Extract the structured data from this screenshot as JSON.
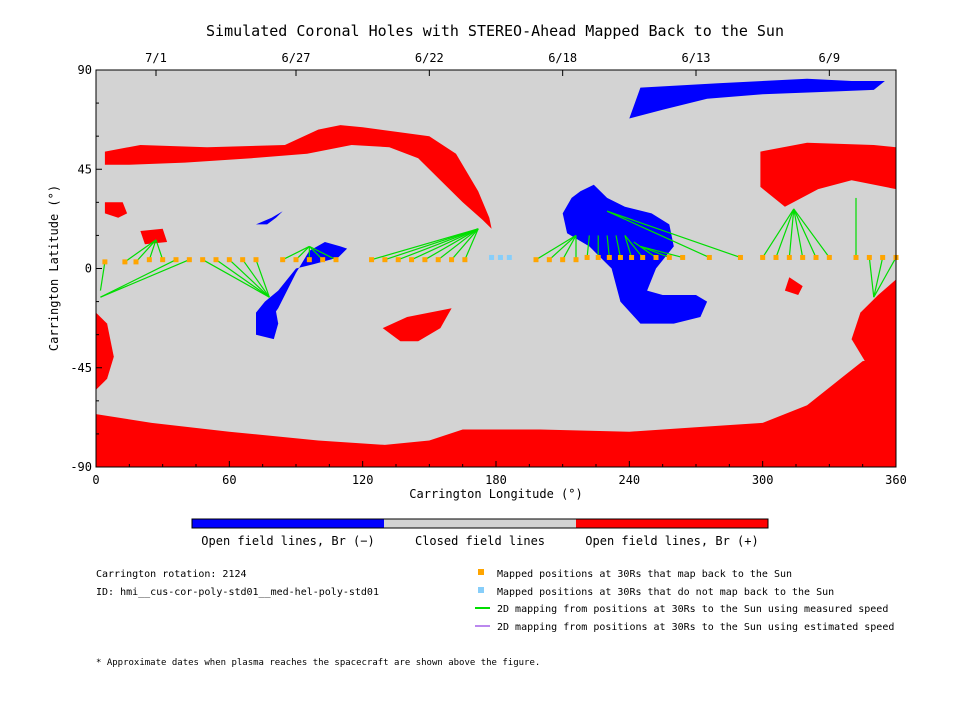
{
  "chart_data": {
    "type": "map",
    "title": "Simulated Coronal Holes with STEREO-Ahead Mapped Back to the Sun",
    "xlabel": "Carrington Longitude (°)",
    "ylabel": "Carrington Latitude (°)",
    "xlim": [
      0,
      360
    ],
    "ylim": [
      -90,
      90
    ],
    "x_ticks": [
      "0",
      "60",
      "120",
      "180",
      "240",
      "300",
      "360"
    ],
    "y_ticks": [
      "90",
      "45",
      "0",
      "-45",
      "-90"
    ],
    "top_dates": [
      {
        "label": "7/1",
        "lon": 27
      },
      {
        "label": "6/27",
        "lon": 90
      },
      {
        "label": "6/22",
        "lon": 150
      },
      {
        "label": "6/18",
        "lon": 210
      },
      {
        "label": "6/13",
        "lon": 270
      },
      {
        "label": "6/9",
        "lon": 330
      }
    ],
    "colorbar": [
      {
        "label": "Open field lines, Br (−)",
        "color": "#0000ff"
      },
      {
        "label": "Closed field lines",
        "color": "#d3d3d3"
      },
      {
        "label": "Open field lines, Br (+)",
        "color": "#ff0000"
      }
    ],
    "colors": {
      "closed": "#d3d3d3",
      "negative": "#0000ff",
      "positive": "#ff0000",
      "mapped": "#ffa500",
      "unmapped": "#87cefa",
      "measured": "#00dd00",
      "estimated": "#bb88ee"
    },
    "regions": [
      {
        "polarity": "positive",
        "points": [
          [
            0,
            -66
          ],
          [
            25,
            -70
          ],
          [
            60,
            -74
          ],
          [
            100,
            -78
          ],
          [
            130,
            -80
          ],
          [
            150,
            -78
          ],
          [
            165,
            -73
          ],
          [
            200,
            -73
          ],
          [
            240,
            -74
          ],
          [
            270,
            -72
          ],
          [
            300,
            -70
          ],
          [
            320,
            -62
          ],
          [
            335,
            -50
          ],
          [
            345,
            -42
          ],
          [
            360,
            -40
          ],
          [
            360,
            -90
          ],
          [
            0,
            -90
          ]
        ]
      },
      {
        "polarity": "positive",
        "points": [
          [
            0,
            -20
          ],
          [
            5,
            -25
          ],
          [
            8,
            -40
          ],
          [
            5,
            -50
          ],
          [
            0,
            -55
          ]
        ]
      },
      {
        "polarity": "positive",
        "points": [
          [
            360,
            -5
          ],
          [
            352,
            -12
          ],
          [
            344,
            -20
          ],
          [
            340,
            -32
          ],
          [
            346,
            -42
          ],
          [
            352,
            -48
          ],
          [
            360,
            -45
          ]
        ]
      },
      {
        "polarity": "positive",
        "points": [
          [
            4,
            53
          ],
          [
            20,
            56
          ],
          [
            50,
            55
          ],
          [
            85,
            56
          ],
          [
            100,
            63
          ],
          [
            110,
            65
          ],
          [
            120,
            64
          ],
          [
            135,
            62
          ],
          [
            150,
            60
          ],
          [
            162,
            52
          ],
          [
            172,
            35
          ],
          [
            177,
            23
          ],
          [
            178,
            18
          ],
          [
            174,
            22
          ],
          [
            165,
            30
          ],
          [
            155,
            40
          ],
          [
            145,
            50
          ],
          [
            132,
            55
          ],
          [
            115,
            56
          ],
          [
            95,
            52
          ],
          [
            70,
            50
          ],
          [
            40,
            48
          ],
          [
            15,
            47
          ],
          [
            4,
            47
          ]
        ]
      },
      {
        "polarity": "positive",
        "points": [
          [
            4,
            30
          ],
          [
            12,
            30
          ],
          [
            14,
            25
          ],
          [
            10,
            23
          ],
          [
            4,
            25
          ]
        ]
      },
      {
        "polarity": "positive",
        "points": [
          [
            20,
            17
          ],
          [
            30,
            18
          ],
          [
            32,
            12
          ],
          [
            22,
            11
          ]
        ]
      },
      {
        "polarity": "positive",
        "points": [
          [
            129,
            -27
          ],
          [
            140,
            -22
          ],
          [
            150,
            -20
          ],
          [
            160,
            -18
          ],
          [
            155,
            -27
          ],
          [
            145,
            -33
          ],
          [
            137,
            -33
          ]
        ]
      },
      {
        "polarity": "positive",
        "points": [
          [
            299,
            53
          ],
          [
            320,
            57
          ],
          [
            350,
            56
          ],
          [
            360,
            55
          ],
          [
            360,
            36
          ],
          [
            340,
            40
          ],
          [
            325,
            36
          ],
          [
            310,
            28
          ],
          [
            299,
            37
          ]
        ]
      },
      {
        "polarity": "positive",
        "points": [
          [
            312,
            -4
          ],
          [
            318,
            -8
          ],
          [
            316,
            -12
          ],
          [
            310,
            -10
          ]
        ]
      },
      {
        "polarity": "negative",
        "points": [
          [
            245,
            82
          ],
          [
            280,
            84
          ],
          [
            320,
            86
          ],
          [
            340,
            85
          ],
          [
            355,
            85
          ],
          [
            350,
            81
          ],
          [
            325,
            80
          ],
          [
            300,
            79
          ],
          [
            275,
            77
          ],
          [
            255,
            72
          ],
          [
            240,
            68
          ]
        ]
      },
      {
        "polarity": "negative",
        "points": [
          [
            214,
            32
          ],
          [
            218,
            35
          ],
          [
            224,
            38
          ],
          [
            230,
            32
          ],
          [
            238,
            28
          ],
          [
            250,
            25
          ],
          [
            258,
            20
          ],
          [
            260,
            10
          ],
          [
            252,
            0
          ],
          [
            248,
            -10
          ],
          [
            255,
            -12
          ],
          [
            270,
            -12
          ],
          [
            275,
            -15
          ],
          [
            272,
            -22
          ],
          [
            260,
            -25
          ],
          [
            245,
            -25
          ],
          [
            236,
            -15
          ],
          [
            232,
            0
          ],
          [
            222,
            10
          ],
          [
            212,
            16
          ],
          [
            210,
            25
          ]
        ]
      },
      {
        "polarity": "negative",
        "points": [
          [
            75,
            -28
          ],
          [
            82,
            -18
          ],
          [
            90,
            -2
          ],
          [
            96,
            8
          ],
          [
            103,
            12
          ],
          [
            110,
            10
          ],
          [
            113,
            9
          ],
          [
            109,
            5
          ],
          [
            98,
            2
          ],
          [
            90,
            0
          ],
          [
            82,
            -10
          ],
          [
            76,
            -15
          ],
          [
            72,
            -20
          ],
          [
            72,
            -28
          ]
        ]
      },
      {
        "polarity": "negative",
        "points": [
          [
            72,
            20
          ],
          [
            79,
            23
          ],
          [
            84,
            26
          ],
          [
            81,
            23
          ],
          [
            77,
            20
          ]
        ]
      },
      {
        "polarity": "negative",
        "points": [
          [
            72,
            -22
          ],
          [
            80,
            -14
          ],
          [
            82,
            -25
          ],
          [
            80,
            -32
          ],
          [
            72,
            -30
          ]
        ]
      }
    ],
    "mapped_points": [
      {
        "lon": 4,
        "lat": 3,
        "src": [
          2,
          -10
        ]
      },
      {
        "lon": 13,
        "lat": 3,
        "src": [
          27,
          13
        ]
      },
      {
        "lon": 18,
        "lat": 3,
        "src": [
          27,
          13
        ]
      },
      {
        "lon": 24,
        "lat": 4,
        "src": [
          27,
          13
        ]
      },
      {
        "lon": 30,
        "lat": 4,
        "src": [
          27,
          13
        ]
      },
      {
        "lon": 36,
        "lat": 4,
        "src": [
          2,
          -13
        ]
      },
      {
        "lon": 42,
        "lat": 4,
        "src": [
          2,
          -13
        ]
      },
      {
        "lon": 48,
        "lat": 4,
        "src": [
          78,
          -13
        ]
      },
      {
        "lon": 54,
        "lat": 4,
        "src": [
          78,
          -13
        ]
      },
      {
        "lon": 60,
        "lat": 4,
        "src": [
          78,
          -13
        ]
      },
      {
        "lon": 66,
        "lat": 4,
        "src": [
          78,
          -13
        ]
      },
      {
        "lon": 72,
        "lat": 4,
        "src": [
          78,
          -13
        ]
      },
      {
        "lon": 84,
        "lat": 4,
        "src": [
          96,
          10
        ]
      },
      {
        "lon": 90,
        "lat": 4,
        "src": [
          96,
          10
        ]
      },
      {
        "lon": 96,
        "lat": 4,
        "src": [
          96,
          10
        ]
      },
      {
        "lon": 102,
        "lat": 4,
        "src": [
          96,
          10
        ]
      },
      {
        "lon": 108,
        "lat": 4,
        "src": [
          96,
          10
        ]
      },
      {
        "lon": 124,
        "lat": 4,
        "src": [
          172,
          18
        ]
      },
      {
        "lon": 130,
        "lat": 4,
        "src": [
          172,
          18
        ]
      },
      {
        "lon": 136,
        "lat": 4,
        "src": [
          172,
          18
        ]
      },
      {
        "lon": 142,
        "lat": 4,
        "src": [
          172,
          18
        ]
      },
      {
        "lon": 148,
        "lat": 4,
        "src": [
          172,
          18
        ]
      },
      {
        "lon": 154,
        "lat": 4,
        "src": [
          172,
          18
        ]
      },
      {
        "lon": 160,
        "lat": 4,
        "src": [
          172,
          18
        ]
      },
      {
        "lon": 166,
        "lat": 4,
        "src": [
          172,
          18
        ]
      },
      {
        "lon": 198,
        "lat": 4,
        "src": [
          216,
          15
        ]
      },
      {
        "lon": 204,
        "lat": 4,
        "src": [
          216,
          15
        ]
      },
      {
        "lon": 210,
        "lat": 4,
        "src": [
          216,
          15
        ]
      },
      {
        "lon": 216,
        "lat": 4,
        "src": [
          216,
          15
        ]
      },
      {
        "lon": 221,
        "lat": 5,
        "src": [
          222,
          15
        ]
      },
      {
        "lon": 226,
        "lat": 5,
        "src": [
          226,
          15
        ]
      },
      {
        "lon": 231,
        "lat": 5,
        "src": [
          230,
          15
        ]
      },
      {
        "lon": 236,
        "lat": 5,
        "src": [
          234,
          15
        ]
      },
      {
        "lon": 241,
        "lat": 5,
        "src": [
          238,
          15
        ]
      },
      {
        "lon": 246,
        "lat": 5,
        "src": [
          238,
          15
        ]
      },
      {
        "lon": 252,
        "lat": 5,
        "src": [
          242,
          12
        ]
      },
      {
        "lon": 258,
        "lat": 5,
        "src": [
          245,
          10
        ]
      },
      {
        "lon": 264,
        "lat": 5,
        "src": [
          245,
          10
        ]
      },
      {
        "lon": 276,
        "lat": 5,
        "src": [
          230,
          26
        ]
      },
      {
        "lon": 290,
        "lat": 5,
        "src": [
          230,
          26
        ]
      },
      {
        "lon": 300,
        "lat": 5,
        "src": [
          314,
          27
        ]
      },
      {
        "lon": 306,
        "lat": 5,
        "src": [
          314,
          27
        ]
      },
      {
        "lon": 312,
        "lat": 5,
        "src": [
          314,
          27
        ]
      },
      {
        "lon": 318,
        "lat": 5,
        "src": [
          314,
          27
        ]
      },
      {
        "lon": 324,
        "lat": 5,
        "src": [
          314,
          27
        ]
      },
      {
        "lon": 330,
        "lat": 5,
        "src": [
          314,
          27
        ]
      },
      {
        "lon": 342,
        "lat": 5,
        "src": [
          342,
          32
        ]
      },
      {
        "lon": 348,
        "lat": 5,
        "src": [
          350,
          -13
        ]
      },
      {
        "lon": 354,
        "lat": 5,
        "src": [
          350,
          -13
        ]
      },
      {
        "lon": 360,
        "lat": 5,
        "src": [
          350,
          -13
        ]
      }
    ],
    "unmapped_points": [
      {
        "lon": 178,
        "lat": 5
      },
      {
        "lon": 182,
        "lat": 5
      },
      {
        "lon": 186,
        "lat": 5
      }
    ]
  },
  "info": {
    "rotation": "Carrington rotation: 2124",
    "id": "ID: hmi__cus-cor-poly-std01__med-hel-poly-std01",
    "footnote": "* Approximate dates when plasma reaches the spacecraft are shown above the figure."
  },
  "legend": [
    {
      "kind": "square",
      "color": "#ffa500",
      "label": "Mapped positions at 30Rs that map back to the Sun"
    },
    {
      "kind": "square",
      "color": "#87cefa",
      "label": "Mapped positions at 30Rs that do not map back to the Sun"
    },
    {
      "kind": "line",
      "color": "#00dd00",
      "label": "2D mapping from positions at 30Rs to the Sun using measured speed"
    },
    {
      "kind": "line",
      "color": "#bb88ee",
      "label": "2D mapping from positions at 30Rs to the Sun using estimated speed"
    }
  ]
}
